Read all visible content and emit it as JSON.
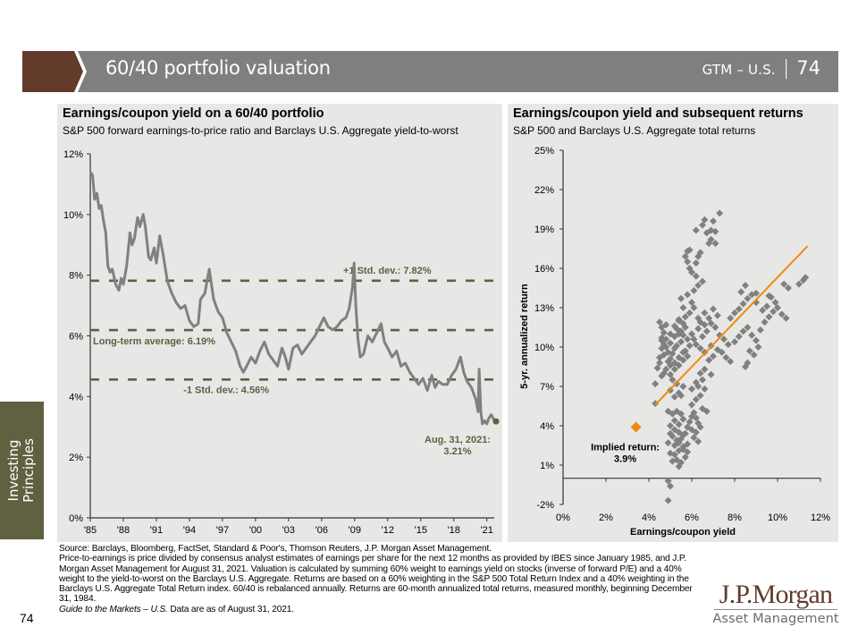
{
  "header": {
    "title": "60/40 portfolio valuation",
    "section": "GTM – U.S.",
    "separator": "|",
    "page": "74",
    "accent_color": "#633b2b",
    "bar_color": "#7f7f7f"
  },
  "sidebar": {
    "tab_line1": "Investing",
    "tab_line2": "Principles",
    "tab_color": "#5f6140",
    "page_number": "74"
  },
  "chart_data": [
    {
      "type": "line",
      "title": "Earnings/coupon yield on a 60/40 portfolio",
      "subtitle": "S&P 500 forward earnings-to-price ratio and Barclays U.S. Aggregate yield-to-worst",
      "xlabel": "",
      "ylabel": "",
      "xlim": [
        1985,
        2021.67
      ],
      "ylim": [
        0,
        12
      ],
      "grid": false,
      "x_tick_values": [
        1985,
        1988,
        1991,
        1994,
        1997,
        2000,
        2003,
        2006,
        2009,
        2012,
        2015,
        2018,
        2021
      ],
      "x_tick_labels": [
        "'85",
        "'88",
        "'91",
        "'94",
        "'97",
        "'00",
        "'03",
        "'06",
        "'09",
        "'12",
        "'15",
        "'18",
        "'21"
      ],
      "y_tick_values": [
        0,
        2,
        4,
        6,
        8,
        10,
        12
      ],
      "y_tick_labels": [
        "0%",
        "2%",
        "4%",
        "6%",
        "8%",
        "10%",
        "12%"
      ],
      "line_color": "#808080",
      "reference_color": "#5f6140",
      "series": [
        {
          "name": "60/40 earnings/coupon yield",
          "x": [
            1985.0,
            1985.2,
            1985.4,
            1985.6,
            1985.8,
            1986.0,
            1986.2,
            1986.4,
            1986.6,
            1986.8,
            1987.0,
            1987.3,
            1987.6,
            1987.8,
            1988.0,
            1988.3,
            1988.6,
            1988.8,
            1989.0,
            1989.3,
            1989.5,
            1989.8,
            1990.0,
            1990.3,
            1990.5,
            1990.8,
            1991.0,
            1991.3,
            1991.6,
            1992.0,
            1992.4,
            1992.8,
            1993.2,
            1993.6,
            1994.0,
            1994.4,
            1994.8,
            1995.0,
            1995.4,
            1995.8,
            1996.2,
            1996.6,
            1997.0,
            1997.4,
            1997.8,
            1998.2,
            1998.6,
            1998.9,
            1999.2,
            1999.6,
            2000.0,
            2000.4,
            2000.8,
            2001.2,
            2001.6,
            2002.0,
            2002.4,
            2002.7,
            2003.0,
            2003.4,
            2003.8,
            2004.2,
            2004.6,
            2005.0,
            2005.4,
            2005.8,
            2006.2,
            2006.6,
            2007.0,
            2007.4,
            2007.8,
            2008.2,
            2008.5,
            2008.8,
            2008.95,
            2009.1,
            2009.3,
            2009.5,
            2009.8,
            2010.2,
            2010.6,
            2011.0,
            2011.4,
            2011.7,
            2012.0,
            2012.4,
            2012.8,
            2013.2,
            2013.6,
            2014.0,
            2014.4,
            2014.8,
            2015.2,
            2015.6,
            2016.0,
            2016.3,
            2016.6,
            2017.0,
            2017.4,
            2017.8,
            2018.2,
            2018.6,
            2018.9,
            2019.2,
            2019.6,
            2020.0,
            2020.2,
            2020.3,
            2020.45,
            2020.6,
            2020.8,
            2021.0,
            2021.2,
            2021.4,
            2021.67
          ],
          "y": [
            11.4,
            11.3,
            10.5,
            10.7,
            10.2,
            10.3,
            9.8,
            9.4,
            8.3,
            8.1,
            8.2,
            7.7,
            7.5,
            7.9,
            7.7,
            8.3,
            9.4,
            9.0,
            9.2,
            9.9,
            9.6,
            10.0,
            9.6,
            8.6,
            8.5,
            8.9,
            8.4,
            9.3,
            8.7,
            7.8,
            7.4,
            7.1,
            6.9,
            7.0,
            6.5,
            6.3,
            6.4,
            7.2,
            7.4,
            8.2,
            7.2,
            6.8,
            6.6,
            6.1,
            5.8,
            5.5,
            5.0,
            4.8,
            5.0,
            5.3,
            5.1,
            5.5,
            5.8,
            5.4,
            5.2,
            5.0,
            5.6,
            5.3,
            4.9,
            5.6,
            5.7,
            5.4,
            5.6,
            5.8,
            6.0,
            6.3,
            6.6,
            6.3,
            6.2,
            6.3,
            6.5,
            6.6,
            6.9,
            7.6,
            8.4,
            7.0,
            5.9,
            5.3,
            5.4,
            6.0,
            5.8,
            6.1,
            6.4,
            5.8,
            5.6,
            5.3,
            5.5,
            5.0,
            5.1,
            4.8,
            4.6,
            4.4,
            4.6,
            4.2,
            4.7,
            4.3,
            4.5,
            4.4,
            4.4,
            4.7,
            4.9,
            5.3,
            4.8,
            4.5,
            4.3,
            3.9,
            3.5,
            4.9,
            3.5,
            3.1,
            3.2,
            3.1,
            3.3,
            3.4,
            3.21
          ]
        }
      ],
      "reference_lines": [
        {
          "name": "+1 Std. dev.",
          "value": 7.82,
          "label": "+1 Std. dev.: 7.82%"
        },
        {
          "name": "Long-term average",
          "value": 6.19,
          "label": "Long-term average: 6.19%"
        },
        {
          "name": "-1 Std. dev.",
          "value": 4.56,
          "label": "-1 Std. dev.: 4.56%"
        }
      ],
      "annotations": [
        {
          "x": 2021.67,
          "y": 3.21,
          "line1": "Aug. 31, 2021:",
          "line2": "3.21%"
        }
      ]
    },
    {
      "type": "scatter",
      "title": "Earnings/coupon yield and subsequent returns",
      "subtitle": "S&P 500 and Barclays U.S. Aggregate total returns",
      "xlabel": "Earnings/coupon  yield",
      "ylabel": "5-yr. annualized return",
      "xlim": [
        0,
        12
      ],
      "ylim": [
        -2,
        25
      ],
      "grid": false,
      "x_tick_values": [
        0,
        2,
        4,
        6,
        8,
        10,
        12
      ],
      "x_tick_labels": [
        "0%",
        "2%",
        "4%",
        "6%",
        "8%",
        "10%",
        "12%"
      ],
      "y_tick_values": [
        -2,
        1,
        4,
        7,
        10,
        13,
        16,
        19,
        22,
        25
      ],
      "y_tick_labels": [
        "-2%",
        "1%",
        "4%",
        "7%",
        "10%",
        "13%",
        "16%",
        "19%",
        "22%",
        "25%"
      ],
      "point_color": "#808080",
      "trend_color": "#f28a0c",
      "points": [
        [
          4.3,
          5.7
        ],
        [
          4.3,
          7.2
        ],
        [
          4.4,
          8.4
        ],
        [
          4.5,
          8.8
        ],
        [
          4.6,
          7.8
        ],
        [
          4.7,
          8.0
        ],
        [
          4.5,
          11.9
        ],
        [
          4.6,
          11.5
        ],
        [
          4.7,
          11.1
        ],
        [
          4.8,
          11.7
        ],
        [
          4.6,
          10.7
        ],
        [
          4.7,
          10.2
        ],
        [
          4.6,
          10.5
        ],
        [
          4.8,
          10.0
        ],
        [
          4.9,
          9.6
        ],
        [
          4.5,
          9.2
        ],
        [
          4.7,
          9.4
        ],
        [
          4.9,
          8.9
        ],
        [
          5.0,
          9.1
        ],
        [
          5.1,
          9.5
        ],
        [
          5.2,
          9.9
        ],
        [
          5.0,
          10.3
        ],
        [
          5.3,
          10.1
        ],
        [
          5.2,
          10.8
        ],
        [
          5.4,
          11.0
        ],
        [
          5.3,
          11.4
        ],
        [
          5.5,
          11.2
        ],
        [
          5.4,
          12.0
        ],
        [
          5.6,
          11.8
        ],
        [
          5.7,
          11.5
        ],
        [
          5.6,
          10.9
        ],
        [
          5.5,
          10.4
        ],
        [
          5.8,
          10.6
        ],
        [
          5.9,
          10.1
        ],
        [
          5.7,
          9.7
        ],
        [
          5.8,
          9.3
        ],
        [
          5.6,
          9.0
        ],
        [
          5.4,
          8.6
        ],
        [
          5.2,
          8.3
        ],
        [
          5.0,
          7.9
        ],
        [
          5.1,
          7.5
        ],
        [
          5.3,
          7.2
        ],
        [
          5.6,
          7.0
        ],
        [
          5.4,
          6.5
        ],
        [
          5.2,
          6.2
        ],
        [
          5.0,
          6.7
        ],
        [
          5.5,
          6.3
        ],
        [
          4.9,
          5.1
        ],
        [
          5.1,
          4.9
        ],
        [
          5.3,
          5.1
        ],
        [
          5.5,
          4.9
        ],
        [
          5.2,
          4.4
        ],
        [
          5.4,
          4.1
        ],
        [
          5.6,
          4.5
        ],
        [
          5.0,
          4.0
        ],
        [
          5.2,
          3.7
        ],
        [
          5.4,
          3.5
        ],
        [
          5.6,
          3.3
        ],
        [
          5.1,
          3.2
        ],
        [
          5.3,
          2.9
        ],
        [
          5.5,
          3.0
        ],
        [
          5.7,
          3.4
        ],
        [
          5.8,
          3.9
        ],
        [
          5.9,
          4.3
        ],
        [
          6.0,
          4.7
        ],
        [
          6.1,
          5.0
        ],
        [
          6.2,
          4.6
        ],
        [
          6.3,
          4.2
        ],
        [
          6.0,
          3.7
        ],
        [
          6.2,
          3.5
        ],
        [
          6.4,
          3.9
        ],
        [
          6.1,
          3.1
        ],
        [
          6.3,
          2.8
        ],
        [
          5.8,
          2.6
        ],
        [
          5.6,
          2.4
        ],
        [
          5.4,
          2.1
        ],
        [
          5.2,
          1.8
        ],
        [
          5.3,
          1.4
        ],
        [
          5.5,
          1.2
        ],
        [
          5.7,
          1.6
        ],
        [
          5.0,
          1.9
        ],
        [
          5.2,
          2.5
        ],
        [
          5.4,
          2.7
        ],
        [
          5.6,
          2.2
        ],
        [
          5.8,
          2.0
        ],
        [
          5.1,
          1.3
        ],
        [
          5.4,
          0.9
        ],
        [
          4.9,
          2.7
        ],
        [
          5.0,
          3.4
        ],
        [
          4.9,
          -0.2
        ],
        [
          5.0,
          -0.6
        ],
        [
          4.9,
          -1.7
        ],
        [
          6.0,
          5.6
        ],
        [
          6.2,
          6.0
        ],
        [
          6.4,
          6.3
        ],
        [
          6.5,
          5.3
        ],
        [
          6.7,
          5.1
        ],
        [
          6.6,
          6.8
        ],
        [
          6.9,
          7.9
        ],
        [
          6.5,
          7.5
        ],
        [
          6.3,
          7.0
        ],
        [
          6.0,
          6.8
        ],
        [
          6.2,
          7.3
        ],
        [
          6.4,
          8.0
        ],
        [
          6.6,
          8.3
        ],
        [
          6.8,
          9.0
        ],
        [
          7.0,
          9.3
        ],
        [
          7.2,
          9.8
        ],
        [
          6.9,
          10.1
        ],
        [
          6.6,
          9.6
        ],
        [
          6.4,
          9.9
        ],
        [
          6.2,
          10.2
        ],
        [
          6.1,
          10.6
        ],
        [
          6.0,
          11.0
        ],
        [
          6.3,
          11.4
        ],
        [
          6.5,
          10.8
        ],
        [
          6.7,
          11.2
        ],
        [
          6.9,
          11.8
        ],
        [
          7.1,
          11.5
        ],
        [
          7.3,
          10.9
        ],
        [
          7.5,
          10.6
        ],
        [
          7.7,
          10.2
        ],
        [
          7.4,
          9.6
        ],
        [
          7.6,
          9.2
        ],
        [
          7.8,
          8.9
        ],
        [
          8.0,
          10.4
        ],
        [
          8.2,
          10.8
        ],
        [
          8.4,
          11.2
        ],
        [
          8.6,
          11.5
        ],
        [
          8.8,
          10.9
        ],
        [
          9.0,
          10.5
        ],
        [
          8.7,
          9.7
        ],
        [
          8.5,
          8.5
        ],
        [
          8.6,
          8.8
        ],
        [
          8.9,
          9.4
        ],
        [
          9.1,
          10.0
        ],
        [
          9.2,
          11.3
        ],
        [
          9.4,
          11.9
        ],
        [
          9.6,
          12.3
        ],
        [
          9.8,
          12.7
        ],
        [
          10.0,
          13.0
        ],
        [
          10.2,
          12.5
        ],
        [
          10.4,
          12.2
        ],
        [
          9.9,
          13.4
        ],
        [
          9.5,
          13.1
        ],
        [
          9.3,
          12.8
        ],
        [
          9.7,
          13.8
        ],
        [
          9.0,
          13.4
        ],
        [
          8.8,
          14.0
        ],
        [
          8.6,
          13.7
        ],
        [
          8.4,
          13.3
        ],
        [
          8.2,
          12.9
        ],
        [
          8.0,
          12.6
        ],
        [
          7.8,
          12.2
        ],
        [
          8.3,
          14.2
        ],
        [
          8.5,
          14.7
        ],
        [
          9.0,
          14.1
        ],
        [
          10.3,
          14.8
        ],
        [
          10.5,
          14.5
        ],
        [
          11.0,
          14.8
        ],
        [
          11.2,
          15.1
        ],
        [
          11.3,
          15.3
        ],
        [
          9.6,
          13.9
        ],
        [
          7.2,
          12.4
        ],
        [
          7.0,
          12.9
        ],
        [
          6.8,
          12.2
        ],
        [
          6.6,
          12.6
        ],
        [
          6.1,
          13.0
        ],
        [
          6.0,
          13.4
        ],
        [
          5.6,
          13.0
        ],
        [
          5.5,
          13.7
        ],
        [
          5.8,
          14.0
        ],
        [
          6.1,
          14.3
        ],
        [
          6.3,
          14.7
        ],
        [
          6.5,
          15.0
        ],
        [
          6.2,
          15.4
        ],
        [
          6.0,
          15.7
        ],
        [
          5.9,
          16.0
        ],
        [
          5.8,
          16.5
        ],
        [
          5.7,
          16.9
        ],
        [
          5.8,
          17.3
        ],
        [
          5.9,
          17.4
        ],
        [
          6.2,
          16.4
        ],
        [
          6.3,
          16.9
        ],
        [
          6.4,
          17.2
        ],
        [
          6.2,
          18.9
        ],
        [
          6.5,
          19.3
        ],
        [
          6.6,
          19.7
        ],
        [
          6.7,
          18.7
        ],
        [
          6.9,
          18.2
        ],
        [
          6.8,
          17.9
        ],
        [
          6.9,
          18.9
        ],
        [
          7.1,
          18.8
        ],
        [
          7.0,
          19.6
        ],
        [
          7.3,
          20.2
        ],
        [
          7.1,
          17.9
        ],
        [
          6.3,
          12.2
        ],
        [
          6.4,
          11.9
        ],
        [
          6.6,
          11.7
        ],
        [
          5.9,
          12.6
        ],
        [
          5.7,
          12.3
        ],
        [
          5.4,
          12.1
        ],
        [
          5.2,
          11.6
        ],
        [
          5.0,
          11.0
        ],
        [
          4.8,
          10.6
        ],
        [
          4.6,
          9.9
        ],
        [
          4.8,
          8.3
        ],
        [
          5.0,
          8.6
        ],
        [
          5.2,
          8.8
        ],
        [
          5.4,
          9.2
        ],
        [
          5.6,
          9.6
        ]
      ],
      "trend_line": {
        "x": [
          4.3,
          11.4
        ],
        "y": [
          5.6,
          17.7
        ]
      },
      "highlight": {
        "x": 3.4,
        "y": 3.9,
        "color": "#f28a0c",
        "line1": "Implied return:",
        "line2": "3.9%"
      }
    }
  ],
  "footer": {
    "source": "Source: Barclays, Bloomberg, FactSet, Standard & Poor's, Thomson Reuters, J.P. Morgan Asset Management.",
    "note": "Price-to-earnings is price divided by consensus analyst estimates of earnings per share for the next 12 months as provided by IBES since January 1985, and J.P. Morgan Asset Management for August 31, 2021. Valuation is calculated by summing 60% weight to earnings yield on stocks (inverse of forward P/E) and a 40% weight to the yield-to-worst on the Barclays U.S. Aggregate. Returns are based on a 60% weighting in the S&P 500 Total Return Index and a 40% weighting in the Barclays U.S. Aggregate Total Return index. 60/40 is rebalanced annually. Returns are 60-month annualized total returns, measured monthly, beginning December 31, 1984.",
    "guide_italic": "Guide to the Markets – U.S.",
    "guide_rest": " Data are as of August 31, 2021."
  },
  "logo": {
    "main": "J.P.Morgan",
    "sub": "Asset Management"
  }
}
